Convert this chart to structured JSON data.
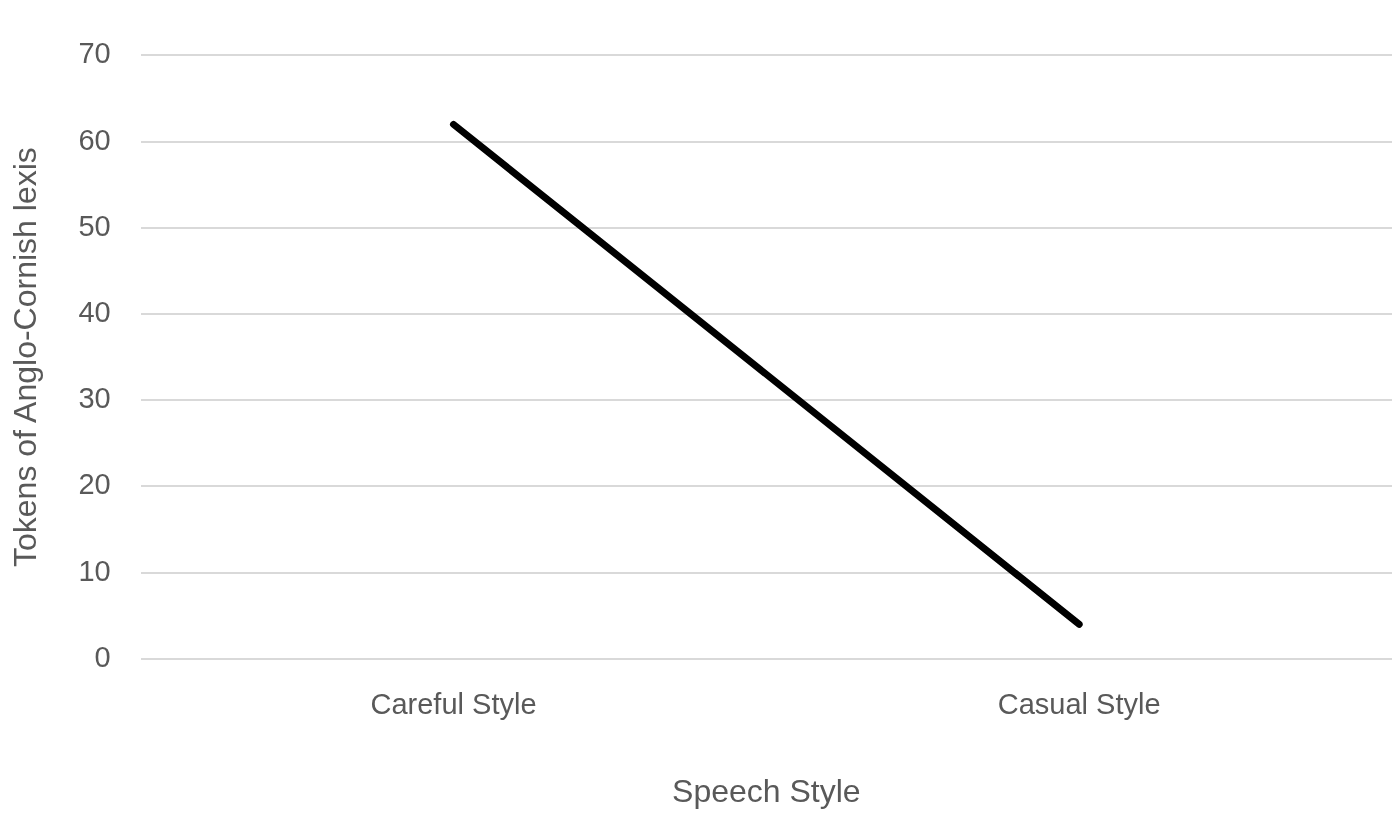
{
  "chart_data": {
    "type": "line",
    "xlabel": "Speech Style",
    "ylabel": "Tokens of Anglo-Cornish lexis",
    "categories": [
      "Careful Style",
      "Casual Style"
    ],
    "series": [
      {
        "color": "#000000",
        "values": [
          62,
          4
        ]
      }
    ],
    "ylim": [
      0,
      70
    ],
    "yticks": [
      0,
      10,
      20,
      30,
      40,
      50,
      60,
      70
    ],
    "grid": "y",
    "legend": false,
    "marker": "none",
    "line_style": "solid"
  }
}
